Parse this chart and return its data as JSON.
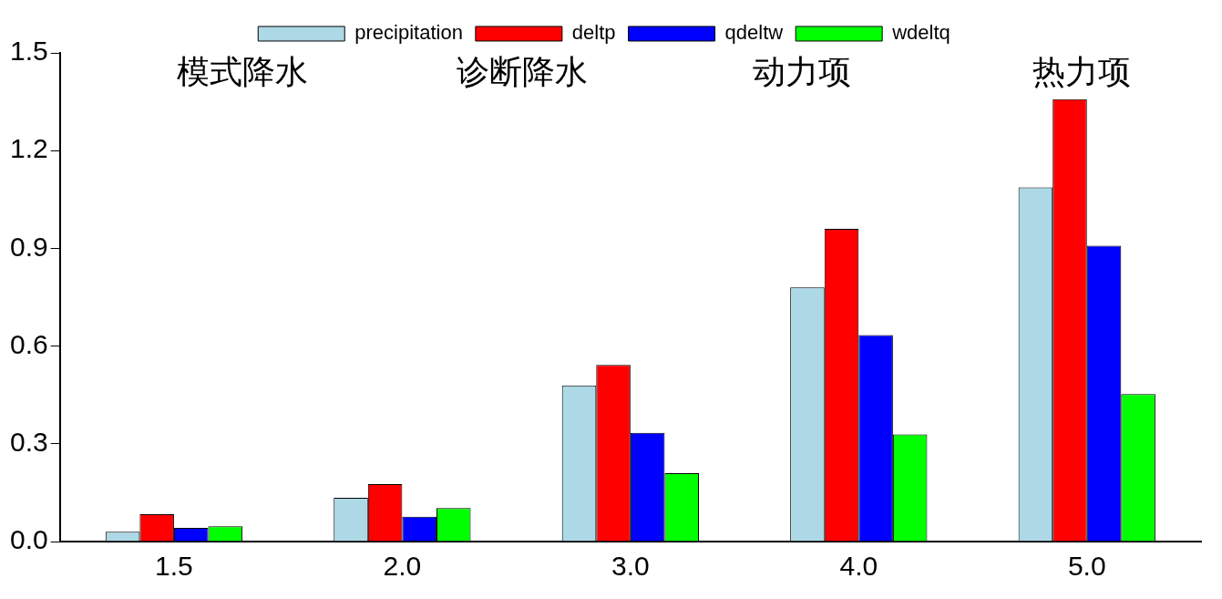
{
  "chart_data": {
    "type": "bar",
    "categories": [
      "1.5",
      "2.0",
      "3.0",
      "4.0",
      "5.0"
    ],
    "series": [
      {
        "name": "precipitation",
        "color": "#add8e6",
        "values": [
          0.03,
          0.134,
          0.479,
          0.78,
          1.087
        ]
      },
      {
        "name": "deltp",
        "color": "#ff0000",
        "values": [
          0.084,
          0.176,
          0.542,
          0.96,
          1.358
        ]
      },
      {
        "name": "qdeltw",
        "color": "#0000ff",
        "values": [
          0.042,
          0.076,
          0.334,
          0.634,
          0.908
        ]
      },
      {
        "name": "wdeltq",
        "color": "#00ff00",
        "values": [
          0.047,
          0.103,
          0.21,
          0.329,
          0.453
        ]
      }
    ],
    "ylim": [
      0,
      1.5
    ],
    "yticks": [
      {
        "value": 0,
        "label": "0.0"
      },
      {
        "value": 0.3,
        "label": "0.3"
      },
      {
        "value": 0.6,
        "label": "0.6"
      },
      {
        "value": 0.9,
        "label": "0.9"
      },
      {
        "value": 1.2,
        "label": "1.2"
      },
      {
        "value": 1.5,
        "label": "1.5"
      }
    ],
    "annotations": [
      "模式降水",
      "诊断降水",
      "动力项",
      "热力项"
    ],
    "grid": false,
    "legend": "top"
  }
}
